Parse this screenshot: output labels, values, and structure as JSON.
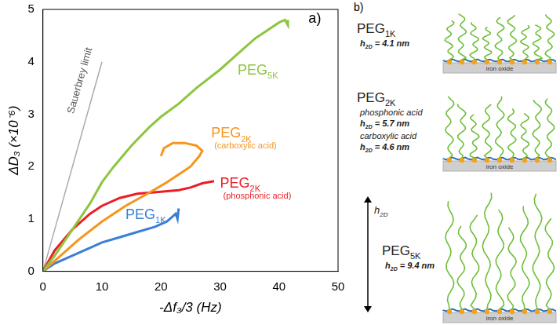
{
  "chart_data": {
    "type": "line",
    "x_label": "-Δf₃/3 (Hz)",
    "y_label": "ΔD₃ (×10⁻⁶)",
    "xlim": [
      0,
      50
    ],
    "xticks": [
      0,
      10,
      20,
      30,
      40,
      50
    ],
    "ylim": [
      0,
      5
    ],
    "yticks": [
      0,
      1,
      2,
      3,
      4,
      5
    ],
    "grid": false,
    "series": [
      {
        "color": "#8cc63f",
        "line_style": "solid",
        "x": [
          0,
          2,
          5,
          8,
          10,
          12,
          15,
          18,
          20,
          23,
          26,
          30,
          33,
          36,
          38,
          40,
          41,
          41.5,
          41.5
        ],
        "values": [
          0,
          0.3,
          0.8,
          1.3,
          1.7,
          2.0,
          2.4,
          2.75,
          2.95,
          3.2,
          3.5,
          3.85,
          4.15,
          4.45,
          4.6,
          4.75,
          4.8,
          4.7,
          4.8
        ]
      },
      {
        "color": "#f7941d",
        "line_style": "solid",
        "x": [
          0,
          3,
          6,
          10,
          14,
          18,
          21,
          23,
          25,
          26.5,
          27,
          26,
          24,
          22,
          20.5,
          20
        ],
        "values": [
          0,
          0.3,
          0.6,
          0.95,
          1.25,
          1.5,
          1.7,
          1.85,
          2.0,
          2.2,
          2.3,
          2.4,
          2.45,
          2.45,
          2.35,
          2.2
        ]
      },
      {
        "color": "#ed1c24",
        "line_style": "solid",
        "x": [
          0,
          2,
          5,
          8,
          10,
          13,
          16,
          20,
          23,
          25,
          27,
          29
        ],
        "values": [
          0,
          0.4,
          0.8,
          1.1,
          1.25,
          1.4,
          1.48,
          1.52,
          1.55,
          1.6,
          1.68,
          1.72
        ]
      },
      {
        "color": "#3a7fd5",
        "line_style": "solid",
        "x": [
          0,
          2,
          5,
          8,
          10,
          13,
          16,
          19,
          21,
          22,
          22.5,
          22.8,
          23
        ],
        "values": [
          0,
          0.15,
          0.3,
          0.45,
          0.55,
          0.65,
          0.75,
          0.85,
          0.95,
          1.05,
          1.1,
          1.0,
          1.2
        ]
      },
      {
        "color": "#aaaaaa",
        "line_style": "thin",
        "x": [
          0,
          10
        ],
        "values": [
          0,
          4
        ]
      }
    ],
    "annotations": [
      {
        "text": "a)",
        "x": 45,
        "y": 4.75,
        "color": "#000000"
      },
      {
        "text": "Sauerbrey limit",
        "x": 5.2,
        "y": 3.0,
        "color": "#555555",
        "series": 4
      },
      {
        "text": "PEG5K",
        "x": 33,
        "y": 3.75,
        "color": "#8cc63f"
      },
      {
        "text": "PEG2K",
        "note": "(carboxylic acid)",
        "x": 28.5,
        "y": 2.55,
        "color": "#f7941d"
      },
      {
        "text": "PEG2K",
        "note": "(phosphonic acid)",
        "x": 30,
        "y": 1.6,
        "color": "#ed1c24"
      },
      {
        "text": "PEG1K",
        "x": 14,
        "y": 1.0,
        "color": "#3a7fd5"
      }
    ]
  },
  "diagram": {
    "panel": "b)",
    "surface_label": "iron oxide",
    "height_label": "h2D",
    "rows": [
      {
        "name": "PEG1K",
        "heights": [
          {
            "text": "h2D = 4.1 nm"
          }
        ]
      },
      {
        "name": "PEG2K",
        "heights": [
          {
            "group": "phosphonic acid",
            "text": "h2D = 5.7 nm"
          },
          {
            "group": "carboxylic acid",
            "text": "h2D = 4.6 nm"
          }
        ]
      },
      {
        "name": "PEG5K",
        "heights": [
          {
            "text": "h2D = 9.4 nm"
          }
        ]
      }
    ]
  }
}
